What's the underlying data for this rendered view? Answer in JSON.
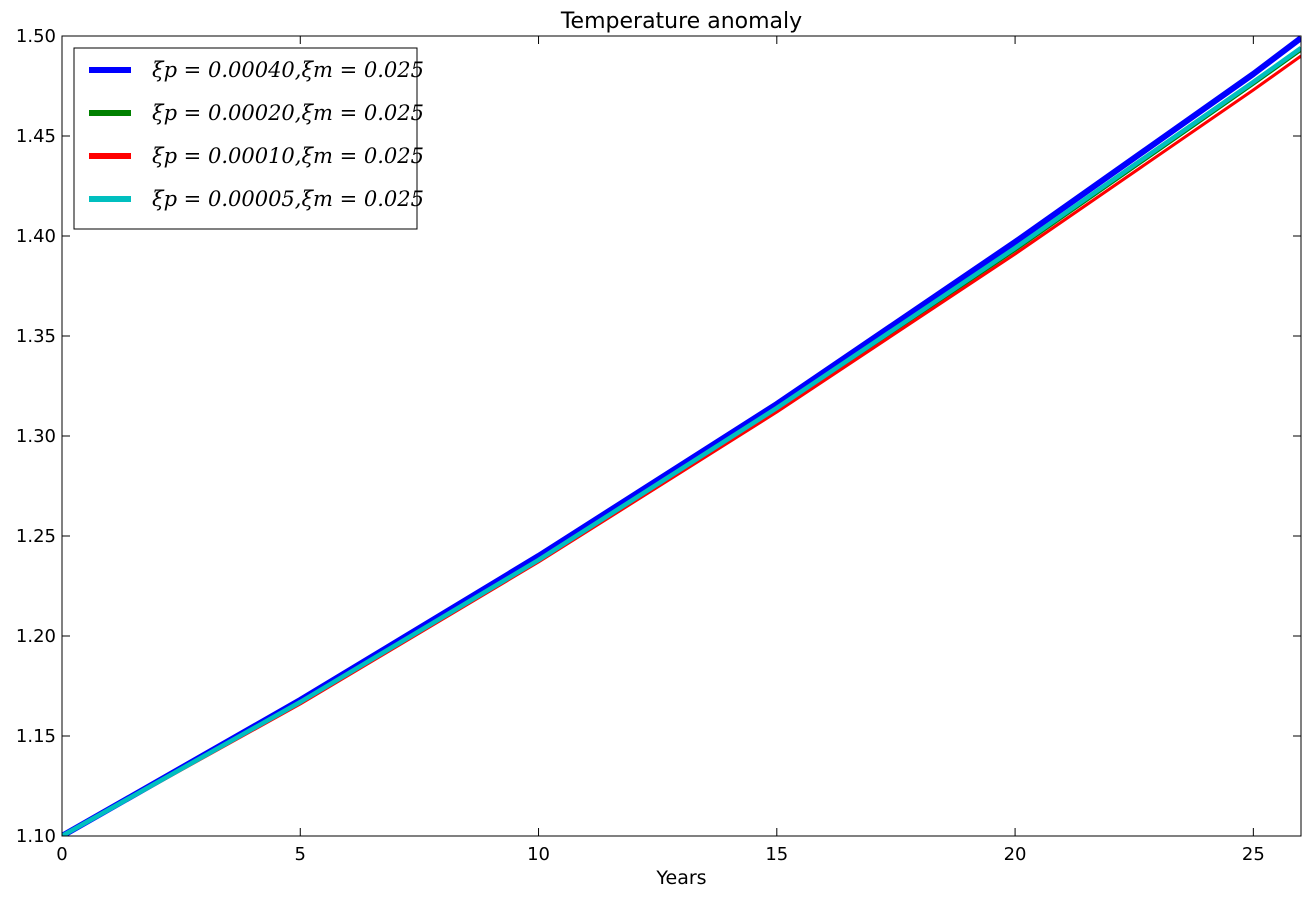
{
  "chart_data": {
    "type": "line",
    "title": "Temperature anomaly",
    "xlabel": "Years",
    "ylabel": "",
    "xlim": [
      0,
      26
    ],
    "ylim": [
      1.1,
      1.5
    ],
    "xticks": [
      0,
      5,
      10,
      15,
      20,
      25
    ],
    "xtick_labels": [
      "0",
      "5",
      "10",
      "15",
      "20",
      "25"
    ],
    "yticks": [
      1.1,
      1.15,
      1.2,
      1.25,
      1.3,
      1.35,
      1.4,
      1.45,
      1.5
    ],
    "ytick_labels": [
      "1.10",
      "1.15",
      "1.20",
      "1.25",
      "1.30",
      "1.35",
      "1.40",
      "1.45",
      "1.50"
    ],
    "grid": false,
    "legend_position": "top-left",
    "x": [
      0,
      5,
      10,
      15,
      20,
      25,
      26
    ],
    "series": [
      {
        "name": "ξp = 0.00040,ξm = 0.025",
        "color": "#0000ff",
        "values": [
          1.1,
          1.168,
          1.24,
          1.316,
          1.397,
          1.481,
          1.499
        ]
      },
      {
        "name": "ξp = 0.00020,ξm = 0.025",
        "color": "#008000",
        "values": [
          1.1,
          1.167,
          1.238,
          1.313,
          1.393,
          1.476,
          1.493
        ]
      },
      {
        "name": "ξp = 0.00010,ξm = 0.025",
        "color": "#ff0000",
        "values": [
          1.1,
          1.166,
          1.237,
          1.312,
          1.391,
          1.473,
          1.49
        ]
      },
      {
        "name": "ξp = 0.00005,ξm = 0.025",
        "color": "#00bfbf",
        "values": [
          1.1,
          1.167,
          1.238,
          1.314,
          1.394,
          1.477,
          1.494
        ]
      }
    ]
  }
}
